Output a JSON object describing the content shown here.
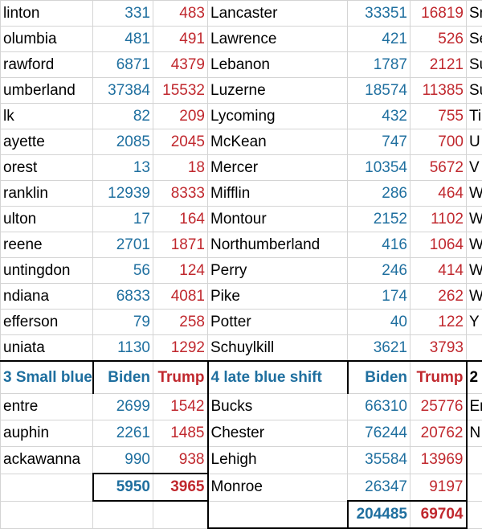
{
  "rows": [
    [
      "linton",
      331,
      483,
      "Lancaster",
      33351,
      16819,
      "Sn"
    ],
    [
      "olumbia",
      481,
      491,
      "Lawrence",
      421,
      526,
      "Se"
    ],
    [
      "rawford",
      6871,
      4379,
      "Lebanon",
      1787,
      2121,
      "Su"
    ],
    [
      "umberland",
      37384,
      15532,
      "Luzerne",
      18574,
      11385,
      "Su"
    ],
    [
      "lk",
      82,
      209,
      "Lycoming",
      432,
      755,
      "Ti"
    ],
    [
      "ayette",
      2085,
      2045,
      "McKean",
      747,
      700,
      "U"
    ],
    [
      "orest",
      13,
      18,
      "Mercer",
      10354,
      5672,
      "V"
    ],
    [
      "ranklin",
      12939,
      8333,
      "Mifflin",
      286,
      464,
      "W"
    ],
    [
      "ulton",
      17,
      164,
      "Montour",
      2152,
      1102,
      "W"
    ],
    [
      "reene",
      2701,
      1871,
      "Northumberland",
      416,
      1064,
      "W"
    ],
    [
      "untingdon",
      56,
      124,
      "Perry",
      246,
      414,
      "W"
    ],
    [
      "ndiana",
      6833,
      4081,
      "Pike",
      174,
      262,
      "W"
    ],
    [
      "efferson",
      79,
      258,
      "Potter",
      40,
      122,
      "Y"
    ],
    [
      "uniata",
      1130,
      1292,
      "Schuylkill",
      3621,
      3793,
      null
    ],
    [
      "3 Small blue",
      "Biden",
      "Trump",
      "4 late blue shift",
      "Biden",
      "Trump",
      "2"
    ],
    [
      "entre",
      2699,
      1542,
      "Bucks",
      66310,
      25776,
      "En"
    ],
    [
      "auphin",
      2261,
      1485,
      "Chester",
      76244,
      20762,
      "N"
    ],
    [
      "ackawanna",
      990,
      938,
      "Lehigh",
      35584,
      13969,
      null
    ],
    [
      null,
      5950,
      3965,
      "Monroe",
      26347,
      9197,
      null
    ],
    [
      null,
      null,
      null,
      null,
      204485,
      69704,
      null
    ]
  ]
}
